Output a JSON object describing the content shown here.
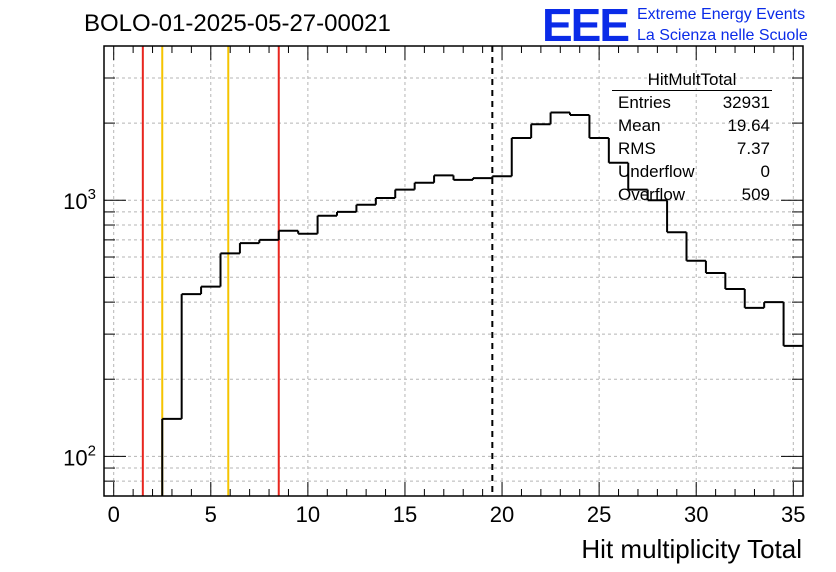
{
  "title": "BOLO-01-2025-05-27-00021",
  "logo": {
    "mark": "EEE",
    "line1": "Extreme Energy Events",
    "line2": "La Scienza nelle Scuole",
    "color": "#0a2be8"
  },
  "stats": {
    "title": "HitMultTotal",
    "rows": [
      {
        "label": "Entries",
        "value": "32931"
      },
      {
        "label": "Mean",
        "value": "19.64"
      },
      {
        "label": "RMS",
        "value": "7.37"
      },
      {
        "label": "Underflow",
        "value": "0"
      },
      {
        "label": "Overflow",
        "value": "509"
      }
    ]
  },
  "chart_data": {
    "type": "bar",
    "histogram": true,
    "xlabel": "Hit multiplicity Total",
    "ylabel": "",
    "xlim": [
      -0.5,
      35.5
    ],
    "ylim": [
      70,
      4000
    ],
    "yscale": "log",
    "grid": true,
    "xticks": [
      0,
      5,
      10,
      15,
      20,
      25,
      30,
      35
    ],
    "yticks": [
      100,
      1000
    ],
    "yticklabels": [
      [
        "10",
        "2"
      ],
      [
        "10",
        "3"
      ]
    ],
    "bin_width": 1,
    "bin_start": 2.5,
    "values": [
      140,
      430,
      460,
      620,
      680,
      700,
      760,
      740,
      870,
      900,
      960,
      1020,
      1100,
      1170,
      1250,
      1200,
      1220,
      1240,
      1750,
      1980,
      2200,
      2150,
      1750,
      1400,
      1100,
      1000,
      750,
      580,
      520,
      450,
      380,
      400,
      270
    ],
    "vlines": [
      {
        "x": 1.5,
        "color": "#e8261f",
        "style": "solid"
      },
      {
        "x": 8.5,
        "color": "#e8261f",
        "style": "solid"
      },
      {
        "x": 2.5,
        "color": "#f5c400",
        "style": "solid"
      },
      {
        "x": 5.9,
        "color": "#f5c400",
        "style": "solid"
      },
      {
        "x": 19.5,
        "color": "#000000",
        "style": "dashed"
      }
    ]
  }
}
